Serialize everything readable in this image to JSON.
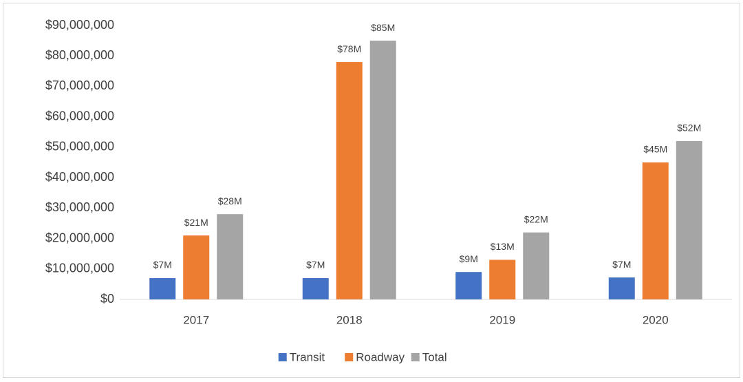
{
  "chart_data": {
    "type": "bar",
    "categories": [
      "2017",
      "2018",
      "2019",
      "2020"
    ],
    "series": [
      {
        "name": "Transit",
        "color": "#4472c4",
        "values": [
          7000000,
          7000000,
          9000000,
          7200000
        ],
        "value_labels": [
          "$7M",
          "$7M",
          "$9M",
          "$7M"
        ]
      },
      {
        "name": "Roadway",
        "color": "#ed7d31",
        "values": [
          21000000,
          78000000,
          13000000,
          45000000
        ],
        "value_labels": [
          "$21M",
          "$78M",
          "$13M",
          "$45M"
        ]
      },
      {
        "name": "Total",
        "color": "#a5a5a5",
        "values": [
          28000000,
          85000000,
          22000000,
          52000000
        ],
        "value_labels": [
          "$28M",
          "$85M",
          "$22M",
          "$52M"
        ]
      }
    ],
    "ylim": [
      0,
      90000000
    ],
    "yticks": [
      {
        "value": 0,
        "label": "$0"
      },
      {
        "value": 10000000,
        "label": "$10,000,000"
      },
      {
        "value": 20000000,
        "label": "$20,000,000"
      },
      {
        "value": 30000000,
        "label": "$30,000,000"
      },
      {
        "value": 40000000,
        "label": "$40,000,000"
      },
      {
        "value": 50000000,
        "label": "$50,000,000"
      },
      {
        "value": 60000000,
        "label": "$60,000,000"
      },
      {
        "value": 70000000,
        "label": "$70,000,000"
      },
      {
        "value": 80000000,
        "label": "$80,000,000"
      },
      {
        "value": 90000000,
        "label": "$90,000,000"
      }
    ],
    "grid": false,
    "legend": "bottom"
  }
}
